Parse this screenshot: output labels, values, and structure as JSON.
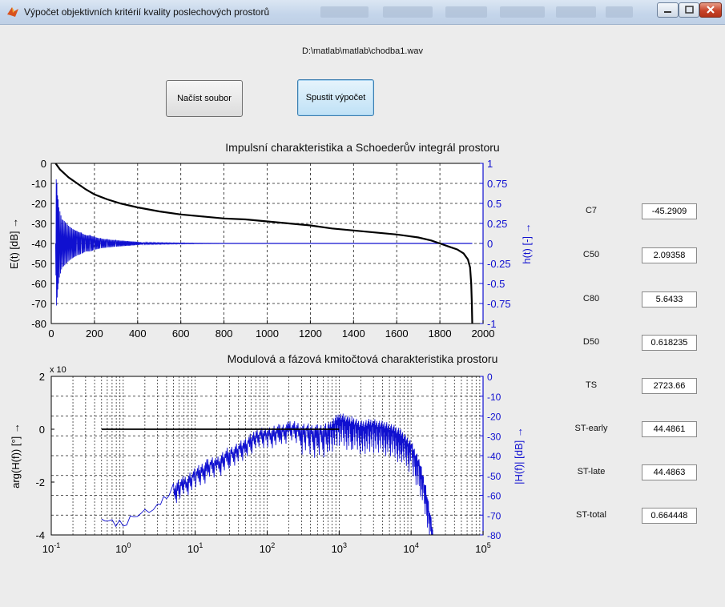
{
  "window": {
    "title": "Výpočet objektivních kritérií kvality poslechových prostorů"
  },
  "file_path": "D:\\matlab\\matlab\\chodba1.wav",
  "buttons": {
    "load": "Načíst soubor",
    "run": "Spustit výpočet"
  },
  "metrics": [
    {
      "label": "C7",
      "value": "-45.2909"
    },
    {
      "label": "C50",
      "value": "2.09358"
    },
    {
      "label": "C80",
      "value": "5.6433"
    },
    {
      "label": "D50",
      "value": "0.618235"
    },
    {
      "label": "TS",
      "value": "2723.66"
    },
    {
      "label": "ST-early",
      "value": "44.4861"
    },
    {
      "label": "ST-late",
      "value": "44.4863"
    },
    {
      "label": "ST-total",
      "value": "0.664448"
    }
  ],
  "colors": {
    "left_axis": "#000000",
    "right_axis": "#1010d0",
    "grid": "#1a1a1a"
  },
  "chart_data": [
    {
      "type": "line",
      "title": "Impulsní charakteristika a Schoederův integrál prostoru",
      "xlim": [
        0,
        2000
      ],
      "xticks": [
        0,
        200,
        400,
        600,
        800,
        1000,
        1200,
        1400,
        1600,
        1800,
        2000
      ],
      "ylabel_left": "E(t) [dB] →",
      "ylim_left": [
        -80,
        0
      ],
      "yticks_left": [
        0,
        -10,
        -20,
        -30,
        -40,
        -50,
        -60,
        -70,
        -80
      ],
      "ylabel_right": "h(t) [-] →",
      "ylim_right": [
        -1,
        1
      ],
      "yticks_right": [
        "1",
        "0.75",
        "0.5",
        "0.25",
        "0",
        "-0.25",
        "-0.5",
        "-0.75",
        "-1"
      ],
      "grid": true,
      "series": [
        {
          "axis": "left",
          "color": "#000000",
          "x": [
            20,
            40,
            80,
            120,
            160,
            200,
            260,
            320,
            400,
            500,
            600,
            700,
            800,
            900,
            1000,
            1100,
            1200,
            1300,
            1400,
            1500,
            1600,
            1700,
            1760,
            1800,
            1840,
            1880,
            1910,
            1930,
            1940,
            1945,
            1948,
            1950
          ],
          "y": [
            0,
            -3,
            -7,
            -10,
            -13,
            -15.5,
            -18,
            -20,
            -22,
            -24,
            -25.5,
            -26.5,
            -27.5,
            -28,
            -29,
            -30,
            -31,
            -32.5,
            -33.5,
            -34.5,
            -35.5,
            -37,
            -38.5,
            -40,
            -41.5,
            -43,
            -45,
            -48,
            -52,
            -60,
            -70,
            -80
          ]
        },
        {
          "axis": "right",
          "color": "#1010d0",
          "x": [
            20,
            23,
            26,
            29,
            32,
            35,
            40,
            45,
            50,
            60,
            70,
            80,
            90,
            100,
            120,
            140,
            160,
            180,
            200,
            230,
            260,
            300,
            350,
            400,
            430,
            600,
            800,
            1000,
            1200,
            1500,
            1800,
            1950
          ],
          "y": [
            0,
            0.8,
            -0.75,
            0.6,
            -0.55,
            0.45,
            0.4,
            -0.35,
            0.3,
            0.28,
            -0.25,
            0.22,
            -0.2,
            0.18,
            0.15,
            -0.13,
            0.1,
            -0.1,
            0.08,
            -0.06,
            0.05,
            -0.04,
            0.03,
            -0.02,
            0.01,
            0.005,
            0,
            0,
            0,
            0,
            0,
            0
          ]
        }
      ]
    },
    {
      "type": "line",
      "title": "Modulová a fázová kmitočtová charakteristika prostoru",
      "xscale": "log",
      "xlim": [
        0.1,
        100000
      ],
      "xticks": [
        "10^-1",
        "10^0",
        "10^1",
        "10^2",
        "10^3",
        "10^4",
        "10^5"
      ],
      "ylabel_left": "arg(H(f)) [°] →",
      "ylim_left": [
        -4,
        2
      ],
      "yticks_left": [
        "2",
        "0",
        "-2",
        "-4"
      ],
      "left_exponent": "x 10",
      "ylabel_right": "|H(f)| [dB] →",
      "ylim_right": [
        -80,
        0
      ],
      "yticks_right": [
        "0",
        "-10",
        "-20",
        "-30",
        "-40",
        "-50",
        "-60",
        "-70",
        "-80"
      ],
      "grid": true,
      "series": [
        {
          "axis": "left",
          "color": "#000000",
          "x": [
            0.5,
            1,
            10,
            100,
            1000
          ],
          "y": [
            0,
            0,
            0,
            0,
            0
          ]
        },
        {
          "axis": "right",
          "color": "#1010d0",
          "x": [
            0.5,
            0.7,
            1,
            1.4,
            2,
            3,
            4,
            5,
            7,
            10,
            15,
            20,
            30,
            50,
            70,
            100,
            150,
            200,
            300,
            500,
            700,
            1000,
            1500,
            2000,
            3000,
            5000,
            7000,
            10000,
            13000,
            16000,
            20000
          ],
          "y": [
            -72,
            -75,
            -77,
            -71,
            -70,
            -66,
            -62,
            -57,
            -54,
            -50,
            -45,
            -44,
            -39,
            -35,
            -30,
            -29,
            -28,
            -26,
            -27,
            -28,
            -27,
            -22,
            -24,
            -26,
            -25,
            -27,
            -30,
            -36,
            -45,
            -58,
            -80
          ]
        }
      ]
    }
  ]
}
